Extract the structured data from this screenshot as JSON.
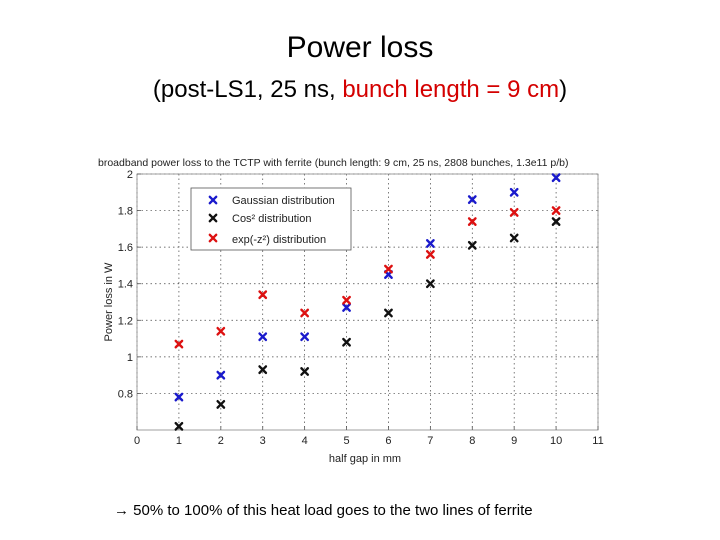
{
  "slide": {
    "title": "Power loss",
    "subtitle_pre": "(post-LS1, 25 ns, ",
    "subtitle_highlight": "bunch length = 9 cm",
    "subtitle_post": ")",
    "footnote_arrow": "→",
    "footnote": "50% to 100% of this heat load goes to the two lines of ferrite"
  },
  "colors": {
    "gaussian": "#1a1acc",
    "cos2": "#111111",
    "exp": "#dd1111",
    "highlight": "#d40000"
  },
  "chart_data": {
    "type": "scatter",
    "title": "broadband power loss to the TCTP with ferrite (bunch length: 9 cm, 25 ns, 2808 bunches, 1.3e11 p/b)",
    "xlabel": "half gap in mm",
    "ylabel": "Power loss in W",
    "xlim": [
      0,
      11
    ],
    "ylim": [
      0.6,
      2
    ],
    "xticks": [
      0,
      1,
      2,
      3,
      4,
      5,
      6,
      7,
      8,
      9,
      10,
      11
    ],
    "yticks": [
      0.8,
      1,
      1.2,
      1.4,
      1.6,
      1.8,
      2
    ],
    "grid": true,
    "legend_position": "top-left",
    "marker": "x",
    "series": [
      {
        "name": "Gaussian distribution",
        "color": "#1a1acc",
        "x": [
          1,
          2,
          3,
          4,
          5,
          6,
          7,
          8,
          9,
          10
        ],
        "y": [
          0.78,
          0.9,
          1.11,
          1.11,
          1.27,
          1.45,
          1.62,
          1.86,
          1.9,
          1.98
        ]
      },
      {
        "name": "Cos² distribution",
        "color": "#111111",
        "x": [
          1,
          2,
          3,
          4,
          5,
          6,
          7,
          8,
          9,
          10
        ],
        "y": [
          0.62,
          0.74,
          0.93,
          0.92,
          1.08,
          1.24,
          1.4,
          1.61,
          1.65,
          1.74
        ]
      },
      {
        "name": "exp(-z²) distribution",
        "color": "#dd1111",
        "x": [
          1,
          2,
          3,
          4,
          5,
          6,
          7,
          8,
          9,
          10
        ],
        "y": [
          1.07,
          1.14,
          1.34,
          1.24,
          1.31,
          1.48,
          1.56,
          1.74,
          1.79,
          1.8
        ]
      }
    ]
  }
}
